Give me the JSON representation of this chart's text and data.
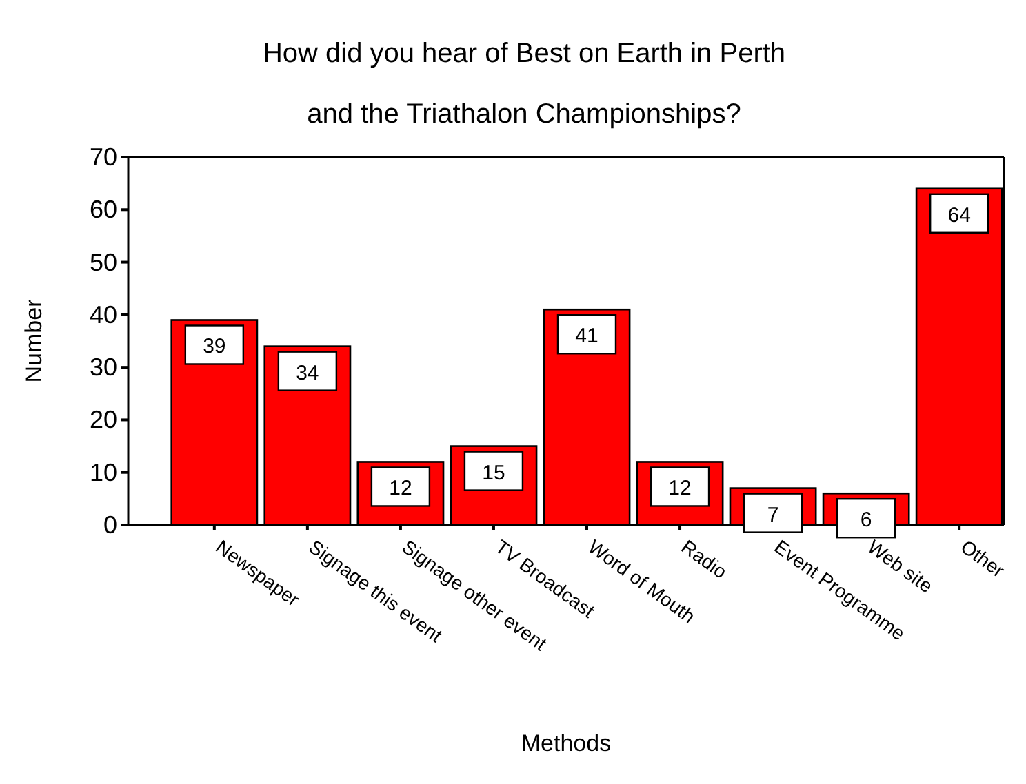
{
  "chart_data": {
    "type": "bar",
    "title": "How did you hear of Best on Earth in Perth and the Triathalon Championships?",
    "xlabel": "Methods",
    "ylabel": "Number",
    "categories": [
      "Newspaper",
      "Signage this event",
      "Signage other event",
      "TV Broadcast",
      "Word of Mouth",
      "Radio",
      "Event Programme",
      "Web site",
      "Other"
    ],
    "values": [
      39,
      34,
      12,
      15,
      41,
      12,
      7,
      6,
      64
    ],
    "color": "#ff0000",
    "data_labels": true,
    "ylim": [
      0,
      70
    ],
    "yticks": [
      0,
      10,
      20,
      30,
      40,
      50,
      60,
      70
    ],
    "grid": false
  }
}
